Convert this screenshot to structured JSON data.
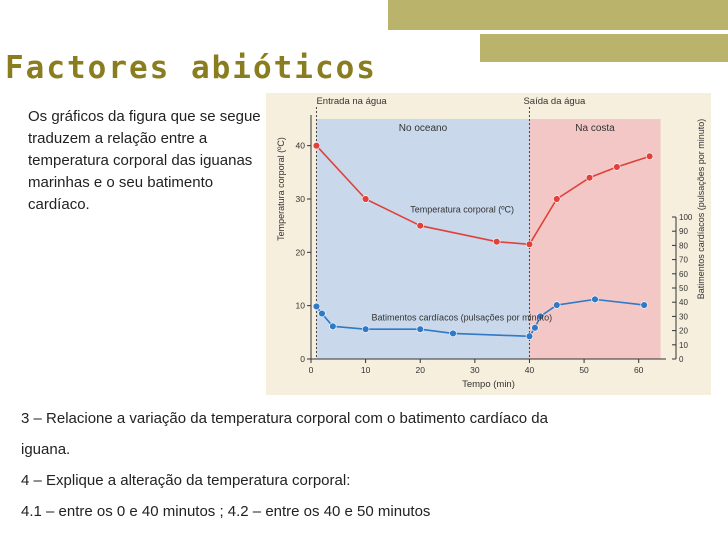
{
  "page": {
    "title": "Factores abióticos",
    "intro": "Os gráficos da figura que se segue traduzem a relação entre a temperatura corporal das iguanas marinhas e o seu batimento cardíaco.",
    "questions": [
      "3 – Relacione a variação da temperatura corporal com o batimento cardíaco da",
      "iguana.",
      "4 – Explique a alteração da temperatura corporal:",
      "4.1 – entre os 0 e 40 minutos ; 4.2 – entre os 40 e 50 minutos"
    ]
  },
  "theme": {
    "title_color": "#8a7d1f",
    "deco_color": "#b9b36c",
    "chart_bg": "#f6efdd",
    "temp_color": "#e0413a",
    "heart_color": "#2f79c6",
    "water_zone": "#c9d8eb",
    "coast_zone": "#f2c7c6"
  },
  "chart_data": {
    "type": "line",
    "xlabel": "Tempo (min)",
    "ylabel": "Temperatura corporal (ºC)",
    "ylabel_right": "Batimentos cardíacos (pulsações por minuto)",
    "xlim": [
      0,
      65
    ],
    "ylim": [
      0,
      45
    ],
    "ylim_right": [
      0,
      100
    ],
    "x_ticks": [
      0,
      10,
      20,
      30,
      40,
      50,
      60
    ],
    "y_ticks": [
      0,
      10,
      20,
      30,
      40
    ],
    "y_ticks_right": [
      0,
      10,
      20,
      30,
      40,
      50,
      60,
      70,
      80,
      90,
      100
    ],
    "events": [
      {
        "label": "Entrada na água",
        "x": 1
      },
      {
        "label": "Saída da água",
        "x": 40
      }
    ],
    "zones": [
      {
        "label": "No oceano",
        "x_from": 1,
        "x_to": 40
      },
      {
        "label": "Na costa",
        "x_from": 40,
        "x_to": 64
      }
    ],
    "series": [
      {
        "name": "Temperatura corporal (ºC)",
        "axis": "left",
        "x": [
          1,
          10,
          20,
          34,
          40,
          45,
          51,
          56,
          62
        ],
        "y": [
          40,
          30,
          25,
          22,
          21.5,
          30,
          34,
          36,
          38
        ]
      },
      {
        "name": "Batimentos cardíacos (pulsações por minuto)",
        "axis": "right",
        "x": [
          1,
          2,
          4,
          10,
          20,
          26,
          40,
          41,
          42,
          45,
          52,
          61
        ],
        "y": [
          37,
          32,
          23,
          21,
          21,
          18,
          16,
          22,
          30,
          38,
          42,
          38
        ]
      }
    ]
  }
}
